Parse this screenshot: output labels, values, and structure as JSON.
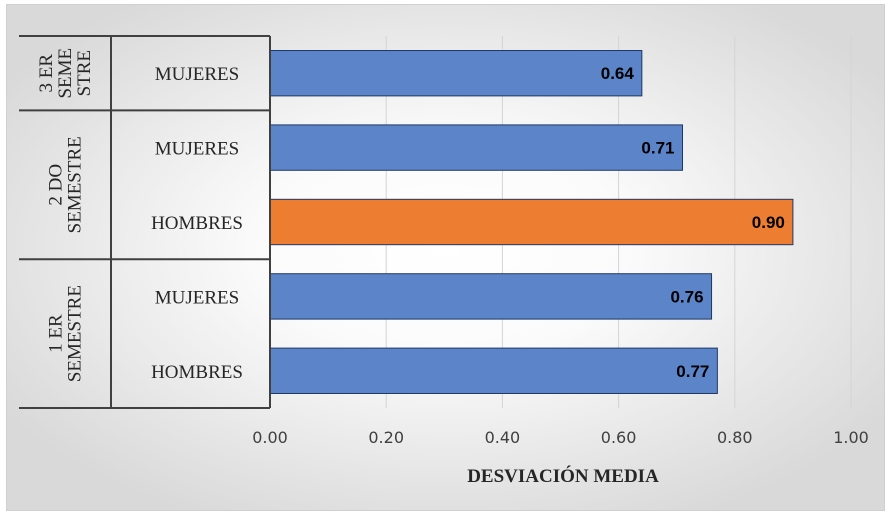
{
  "chart_data": {
    "type": "bar",
    "orientation": "horizontal",
    "title": "",
    "xlabel": "DESVIACIÓN MEDIA",
    "ylabel": "",
    "xlim": [
      0,
      1
    ],
    "x_ticks": [
      "0.00",
      "0.20",
      "0.40",
      "0.60",
      "0.80",
      "1.00"
    ],
    "grid": true,
    "colors": {
      "default": "#5b84c9",
      "highlight": "#ed7d31"
    },
    "groups": [
      {
        "label": [
          "3 ER",
          "SEME",
          "STRE"
        ],
        "bars": [
          {
            "category": "MUJERES",
            "value": 0.64,
            "label": "0.64",
            "highlight": false
          }
        ]
      },
      {
        "label": [
          "2 DO",
          "SEMESTRE"
        ],
        "bars": [
          {
            "category": "MUJERES",
            "value": 0.71,
            "label": "0.71",
            "highlight": false
          },
          {
            "category": "HOMBRES",
            "value": 0.9,
            "label": "0.90",
            "highlight": true
          }
        ]
      },
      {
        "label": [
          "1 ER",
          "SEMESTRE"
        ],
        "bars": [
          {
            "category": "MUJERES",
            "value": 0.76,
            "label": "0.76",
            "highlight": false
          },
          {
            "category": "HOMBRES",
            "value": 0.77,
            "label": "0.77",
            "highlight": false
          }
        ]
      }
    ]
  }
}
